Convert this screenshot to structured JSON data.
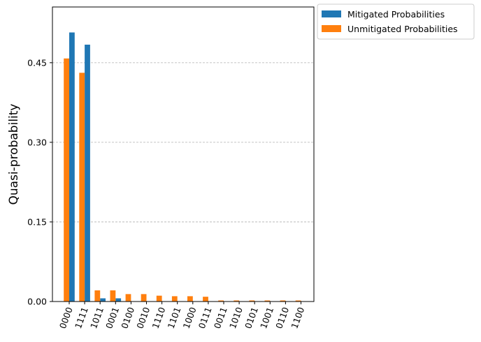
{
  "chart_data": {
    "type": "bar",
    "title": "",
    "xlabel": "",
    "ylabel": "Quasi-probability",
    "ylim": [
      0,
      0.555
    ],
    "yticks": [
      0,
      0.15,
      0.3,
      0.45
    ],
    "ytick_labels": [
      "0.00",
      "0.15",
      "0.30",
      "0.45"
    ],
    "grid": "horizontal dashed at y ticks",
    "legend_placement": "outside top-right",
    "categories": [
      "0000",
      "1111",
      "1011",
      "0001",
      "0100",
      "0010",
      "1110",
      "1101",
      "1000",
      "0111",
      "0011",
      "1010",
      "0101",
      "1001",
      "0110",
      "1100"
    ],
    "series": [
      {
        "name": "Mitigated Probabilities",
        "color": "#1f77b4",
        "values": [
          0.507,
          0.484,
          0.006,
          0.006,
          0,
          0,
          0,
          0,
          0,
          0,
          0,
          0,
          0,
          0,
          0,
          0
        ]
      },
      {
        "name": "Unmitigated Probabilities",
        "color": "#ff7f0e",
        "values": [
          0.458,
          0.431,
          0.021,
          0.021,
          0.014,
          0.014,
          0.011,
          0.01,
          0.01,
          0.009,
          0.002,
          0.002,
          0.002,
          0.002,
          0.002,
          0.002
        ]
      }
    ]
  }
}
